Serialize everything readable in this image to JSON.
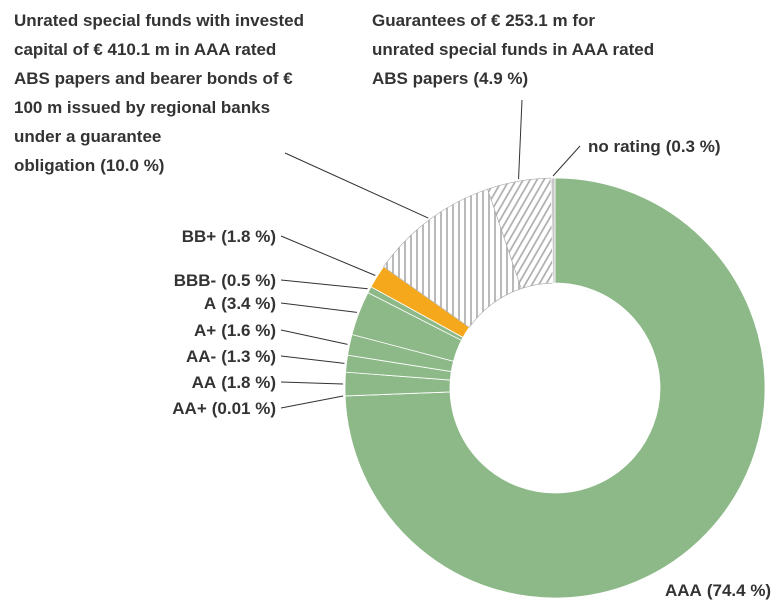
{
  "chart_data": {
    "type": "donut",
    "categories": [
      "AAA",
      "AA+",
      "AA",
      "AA-",
      "A+",
      "A",
      "BBB-",
      "BB+",
      "Unrated special funds with invested capital of € 410.1 m in AAA rated ABS papers and bearer bonds of € 100 m issued by regional banks under a guarantee obligation",
      "Guarantees of € 253.1 m for unrated special funds in AAA rated ABS papers",
      "no rating"
    ],
    "values": [
      74.4,
      0.01,
      1.8,
      1.3,
      1.6,
      3.4,
      0.5,
      1.8,
      10.0,
      4.9,
      0.3
    ],
    "value_labels": [
      "(74.4 %)",
      "(0.01 %)",
      "(1.8 %)",
      "(1.3 %)",
      "(1.6 %)",
      "(3.4 %)",
      "(0.5 %)",
      "(1.8 %)",
      "(10.0 %)",
      "(4.9 %)",
      "(0.3 %)"
    ],
    "colors": [
      "#8cb987",
      "#8cb987",
      "#8cb987",
      "#8cb987",
      "#8cb987",
      "#8cb987",
      "#8cb987",
      "#f5a81c",
      "#a9a9a9",
      "#a9a9a9",
      "#c8c8c8"
    ],
    "hatch": [
      "none",
      "none",
      "none",
      "none",
      "none",
      "none",
      "none",
      "none",
      "vertical",
      "diagonal",
      "none"
    ]
  }
}
